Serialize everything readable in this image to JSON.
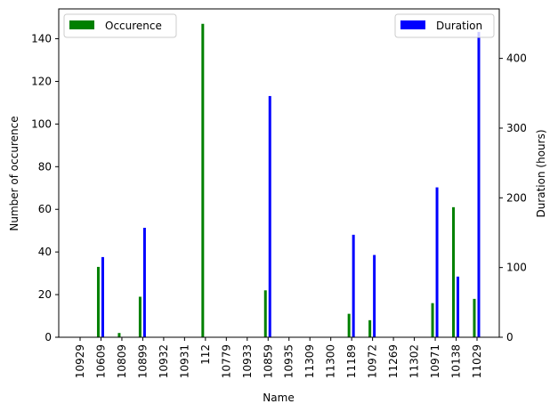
{
  "chart_data": {
    "type": "bar",
    "xlabel": "Name",
    "ylabel_left": "Number of occurence",
    "ylabel_right": "Duration (hours)",
    "ylim_left": [
      0,
      154
    ],
    "ylim_right": [
      0,
      471
    ],
    "yticks_left": [
      "0",
      "20",
      "40",
      "60",
      "80",
      "100",
      "120",
      "140"
    ],
    "yticks_right": [
      "0",
      "100",
      "200",
      "300",
      "400"
    ],
    "grid": false,
    "categories": [
      "10929",
      "10609",
      "10809",
      "10899",
      "10932",
      "10931",
      "112",
      "10779",
      "10933",
      "10859",
      "10935",
      "11309",
      "11300",
      "11189",
      "10972",
      "11269",
      "11302",
      "10971",
      "10138",
      "11029"
    ],
    "series": [
      {
        "name": "Occurence",
        "axis": "left",
        "color": "#008000",
        "values": [
          0,
          33,
          2,
          19,
          0,
          0,
          147,
          0,
          0,
          22,
          0,
          0,
          0,
          11,
          8,
          0,
          0,
          16,
          61,
          18
        ]
      },
      {
        "name": "Duration",
        "axis": "right",
        "color": "#0000ff",
        "values": [
          0,
          115,
          0,
          157,
          0,
          0,
          0,
          0,
          0,
          346,
          0,
          0,
          0,
          147,
          118,
          0,
          0,
          215,
          87,
          438
        ]
      }
    ],
    "legend": [
      {
        "label": "Occurence",
        "placement": "upper-left",
        "color": "#008000"
      },
      {
        "label": "Duration",
        "placement": "upper-right",
        "color": "#0000ff"
      }
    ]
  }
}
